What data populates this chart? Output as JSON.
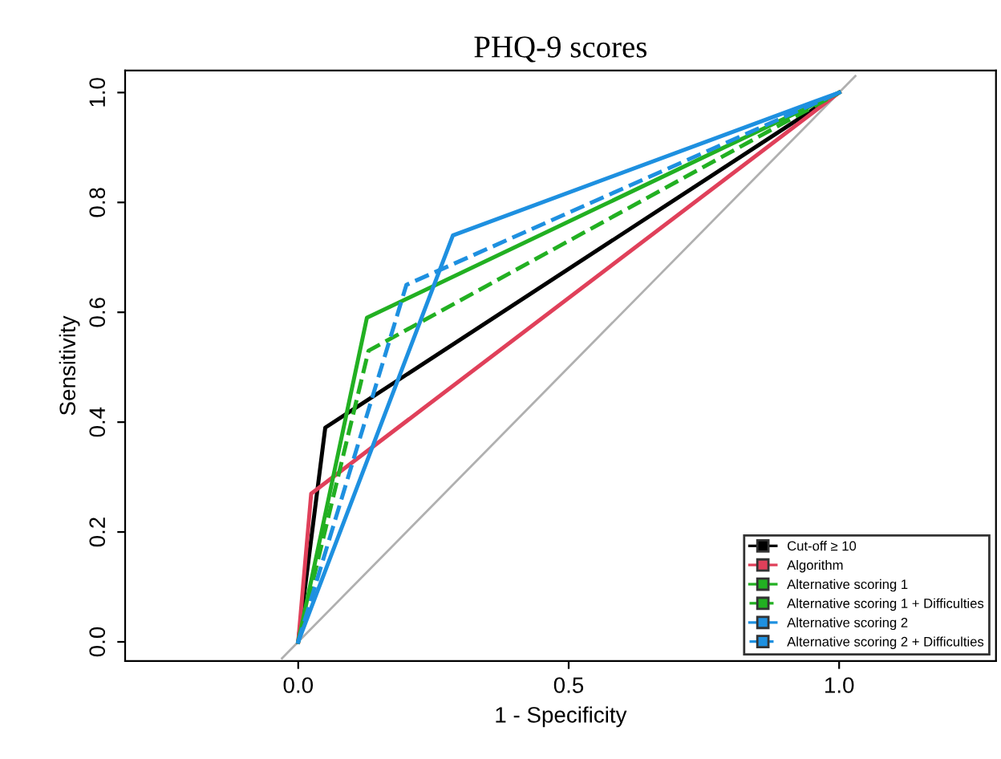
{
  "chart_data": {
    "type": "line",
    "title": "PHQ-9 scores",
    "xlabel": "1 - Specificity",
    "ylabel": "Sensitivity",
    "xlim": [
      -0.32,
      1.29
    ],
    "ylim": [
      -0.035,
      1.04
    ],
    "xticks": [
      {
        "value": 0,
        "label": "0.0"
      },
      0.5,
      {
        "value": 1,
        "label": "1.0"
      }
    ],
    "yticks": [
      {
        "value": 0,
        "label": "0.0"
      },
      0.2,
      0.4,
      0.6,
      0.8,
      {
        "value": 1,
        "label": "1.0"
      }
    ],
    "series": [
      {
        "color": "#b0b0b0",
        "x": [
          -0.03,
          1.03
        ],
        "values": [
          -0.03,
          1.03
        ],
        "line_style": "solid"
      },
      {
        "name": "Cut-off ≥ 10",
        "color": "#000000",
        "x": [
          0,
          0.05,
          1
        ],
        "values": [
          0,
          0.39,
          1
        ],
        "line_style": "solid"
      },
      {
        "name": "Algorithm",
        "color": "#e0405a",
        "x": [
          0,
          0.024,
          1
        ],
        "values": [
          0,
          0.27,
          1
        ],
        "line_style": "solid"
      },
      {
        "name": "Alternative scoring 1",
        "color": "#22b022",
        "x": [
          0,
          0.127,
          1
        ],
        "values": [
          0,
          0.59,
          1
        ],
        "line_style": "solid"
      },
      {
        "name": "Alternative scoring 1 + Difficulties",
        "color": "#22b022",
        "x": [
          0,
          0.13,
          1
        ],
        "values": [
          0,
          0.53,
          1
        ],
        "line_style": "dashed"
      },
      {
        "name": "Alternative scoring 2",
        "color": "#1e90e0",
        "x": [
          0,
          0.286,
          1
        ],
        "values": [
          0,
          0.74,
          1
        ],
        "line_style": "solid"
      },
      {
        "name": "Alternative scoring 2 + Difficulties",
        "color": "#1e90e0",
        "x": [
          0,
          0.2,
          1
        ],
        "values": [
          0,
          0.65,
          1
        ],
        "line_style": "dashed"
      }
    ],
    "legend": "bottom right",
    "grid": false
  }
}
